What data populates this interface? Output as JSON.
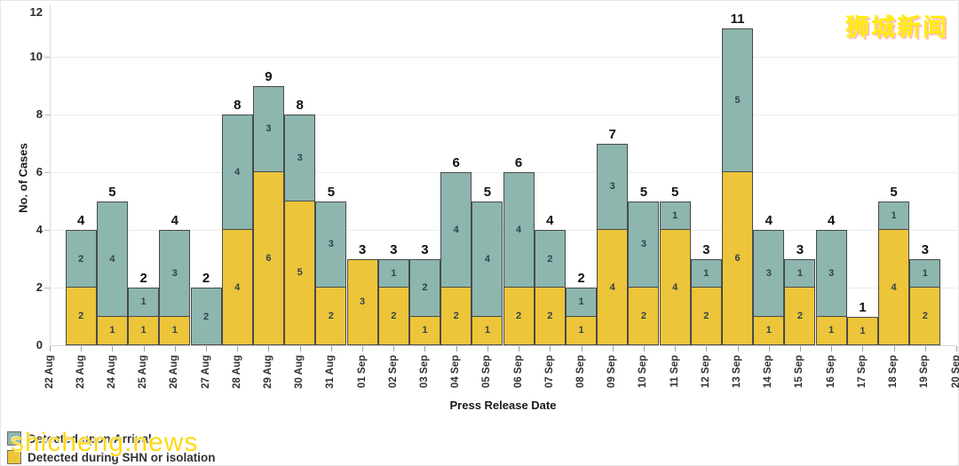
{
  "watermarks": {
    "top_right": "狮城新闻",
    "bottom_left": "shicheng.news"
  },
  "colors": {
    "detected_upon_arrival": "#8cb6ae",
    "detected_during_shn": "#ecc53a",
    "bar_border": "#4a4a4a",
    "gridline": "#ececec",
    "axis_line": "#d9d9d9",
    "watermark_yellow": "#ffd600"
  },
  "chart_data": {
    "type": "bar",
    "stacked": true,
    "title": "",
    "xlabel": "Press Release Date",
    "ylabel": "No. of Cases",
    "ylim": [
      0,
      12
    ],
    "y_ticks": [
      0,
      2,
      4,
      6,
      8,
      10,
      12
    ],
    "grid": "horizontal",
    "legend_position": "bottom-left",
    "bar_value_labels": "inside-segments-and-total-above",
    "categories": [
      "22 Aug",
      "23 Aug",
      "24 Aug",
      "25 Aug",
      "26 Aug",
      "27 Aug",
      "28 Aug",
      "29 Aug",
      "30 Aug",
      "31 Aug",
      "01 Sep",
      "02 Sep",
      "03 Sep",
      "04 Sep",
      "05 Sep",
      "06 Sep",
      "07 Sep",
      "08 Sep",
      "09 Sep",
      "10 Sep",
      "11 Sep",
      "12 Sep",
      "13 Sep",
      "14 Sep",
      "15 Sep",
      "16 Sep",
      "17 Sep",
      "18 Sep",
      "19 Sep",
      "20 Sep"
    ],
    "series": [
      {
        "name": "Detected upon Arrival",
        "color": "#8cb6ae",
        "values": [
          0,
          2,
          4,
          1,
          3,
          2,
          4,
          3,
          3,
          3,
          0,
          1,
          2,
          4,
          4,
          4,
          2,
          1,
          3,
          3,
          1,
          1,
          5,
          3,
          1,
          3,
          0,
          1,
          1,
          0
        ]
      },
      {
        "name": "Detected during SHN or isolation",
        "color": "#ecc53a",
        "values": [
          0,
          2,
          1,
          1,
          1,
          0,
          4,
          6,
          5,
          2,
          3,
          2,
          1,
          2,
          1,
          2,
          2,
          1,
          4,
          2,
          4,
          2,
          6,
          1,
          2,
          1,
          1,
          4,
          2,
          0
        ]
      }
    ],
    "totals": [
      0,
      4,
      5,
      2,
      4,
      2,
      8,
      9,
      8,
      5,
      3,
      3,
      3,
      6,
      5,
      6,
      4,
      2,
      7,
      5,
      5,
      3,
      11,
      4,
      3,
      4,
      1,
      5,
      3,
      0
    ]
  }
}
